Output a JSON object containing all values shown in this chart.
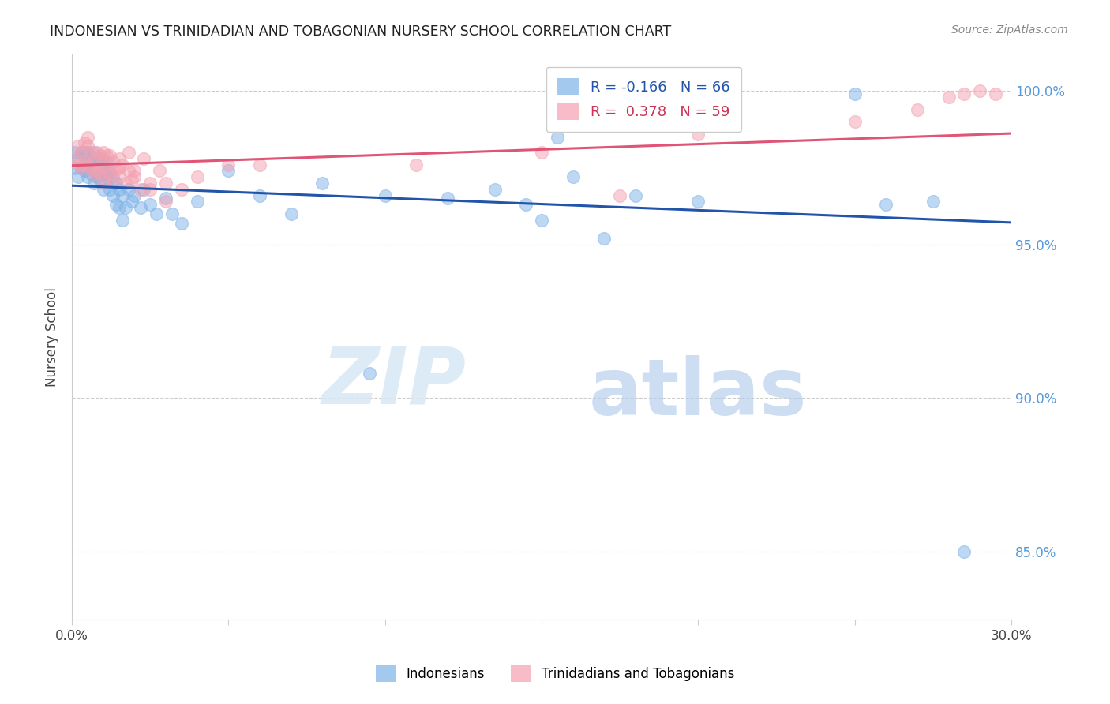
{
  "title": "INDONESIAN VS TRINIDADIAN AND TOBAGONIAN NURSERY SCHOOL CORRELATION CHART",
  "source": "Source: ZipAtlas.com",
  "ylabel": "Nursery School",
  "xlabel": "",
  "xlim": [
    0.0,
    0.3
  ],
  "ylim": [
    0.828,
    1.012
  ],
  "x_ticks": [
    0.0,
    0.05,
    0.1,
    0.15,
    0.2,
    0.25,
    0.3
  ],
  "x_tick_labels": [
    "0.0%",
    "",
    "",
    "",
    "",
    "",
    "30.0%"
  ],
  "y_ticks": [
    0.85,
    0.9,
    0.95,
    1.0
  ],
  "y_tick_labels": [
    "85.0%",
    "90.0%",
    "95.0%",
    "100.0%"
  ],
  "r_blue": -0.166,
  "n_blue": 66,
  "r_pink": 0.378,
  "n_pink": 59,
  "blue_color": "#7EB3E8",
  "pink_color": "#F4A0B0",
  "line_blue": "#2255AA",
  "line_pink": "#E05575",
  "watermark_zip": "ZIP",
  "watermark_atlas": "atlas",
  "blue_scatter_x": [
    0.001,
    0.001,
    0.002,
    0.002,
    0.003,
    0.003,
    0.004,
    0.004,
    0.005,
    0.005,
    0.005,
    0.006,
    0.006,
    0.007,
    0.007,
    0.007,
    0.008,
    0.008,
    0.009,
    0.009,
    0.01,
    0.01,
    0.01,
    0.011,
    0.011,
    0.012,
    0.012,
    0.013,
    0.013,
    0.014,
    0.014,
    0.015,
    0.015,
    0.016,
    0.016,
    0.017,
    0.018,
    0.019,
    0.02,
    0.022,
    0.023,
    0.025,
    0.027,
    0.03,
    0.032,
    0.035,
    0.04,
    0.05,
    0.06,
    0.07,
    0.08,
    0.1,
    0.12,
    0.15,
    0.18,
    0.2,
    0.155,
    0.16,
    0.135,
    0.17,
    0.25,
    0.26,
    0.275,
    0.285,
    0.145,
    0.095
  ],
  "blue_scatter_y": [
    0.98,
    0.975,
    0.978,
    0.972,
    0.98,
    0.975,
    0.98,
    0.974,
    0.98,
    0.977,
    0.972,
    0.978,
    0.973,
    0.98,
    0.975,
    0.97,
    0.978,
    0.972,
    0.978,
    0.971,
    0.977,
    0.973,
    0.968,
    0.977,
    0.972,
    0.974,
    0.968,
    0.972,
    0.966,
    0.97,
    0.963,
    0.968,
    0.962,
    0.966,
    0.958,
    0.962,
    0.968,
    0.964,
    0.966,
    0.962,
    0.968,
    0.963,
    0.96,
    0.965,
    0.96,
    0.957,
    0.964,
    0.974,
    0.966,
    0.96,
    0.97,
    0.966,
    0.965,
    0.958,
    0.966,
    0.964,
    0.985,
    0.972,
    0.968,
    0.952,
    0.999,
    0.963,
    0.964,
    0.85,
    0.963,
    0.908
  ],
  "pink_scatter_x": [
    0.001,
    0.002,
    0.002,
    0.003,
    0.003,
    0.004,
    0.004,
    0.005,
    0.005,
    0.006,
    0.006,
    0.007,
    0.007,
    0.008,
    0.008,
    0.009,
    0.009,
    0.01,
    0.01,
    0.011,
    0.011,
    0.012,
    0.012,
    0.013,
    0.013,
    0.014,
    0.015,
    0.015,
    0.016,
    0.017,
    0.018,
    0.018,
    0.019,
    0.02,
    0.022,
    0.023,
    0.025,
    0.028,
    0.03,
    0.035,
    0.04,
    0.05,
    0.06,
    0.11,
    0.15,
    0.2,
    0.25,
    0.27,
    0.28,
    0.285,
    0.29,
    0.295,
    0.175,
    0.005,
    0.01,
    0.015,
    0.02,
    0.025,
    0.03
  ],
  "pink_scatter_y": [
    0.978,
    0.982,
    0.976,
    0.98,
    0.975,
    0.983,
    0.977,
    0.982,
    0.976,
    0.98,
    0.975,
    0.978,
    0.973,
    0.98,
    0.974,
    0.979,
    0.973,
    0.976,
    0.97,
    0.979,
    0.974,
    0.979,
    0.973,
    0.977,
    0.971,
    0.975,
    0.978,
    0.972,
    0.976,
    0.97,
    0.98,
    0.974,
    0.971,
    0.974,
    0.968,
    0.978,
    0.97,
    0.974,
    0.964,
    0.968,
    0.972,
    0.976,
    0.976,
    0.976,
    0.98,
    0.986,
    0.99,
    0.994,
    0.998,
    0.999,
    1.0,
    0.999,
    0.966,
    0.985,
    0.98,
    0.975,
    0.972,
    0.968,
    0.97
  ]
}
